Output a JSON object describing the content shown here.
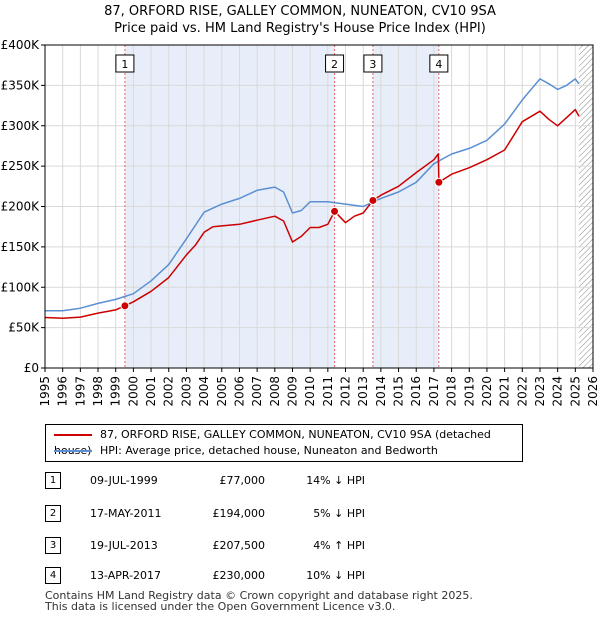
{
  "title": {
    "line1": "87, ORFORD RISE, GALLEY COMMON, NUNEATON, CV10 9SA",
    "line2": "Price paid vs. HM Land Registry's House Price Index (HPI)"
  },
  "chart_data": {
    "type": "line",
    "x_range": [
      1995,
      2026
    ],
    "ylim": [
      0,
      400000
    ],
    "x_ticks": [
      1995,
      1996,
      1997,
      1998,
      1999,
      2000,
      2001,
      2002,
      2003,
      2004,
      2005,
      2006,
      2007,
      2008,
      2009,
      2010,
      2011,
      2012,
      2013,
      2014,
      2015,
      2016,
      2017,
      2018,
      2019,
      2020,
      2021,
      2022,
      2023,
      2024,
      2025,
      2026
    ],
    "y_ticks": [
      {
        "value": 0,
        "label": "£0"
      },
      {
        "value": 50000,
        "label": "£50K"
      },
      {
        "value": 100000,
        "label": "£100K"
      },
      {
        "value": 150000,
        "label": "£150K"
      },
      {
        "value": 200000,
        "label": "£200K"
      },
      {
        "value": 250000,
        "label": "£250K"
      },
      {
        "value": 300000,
        "label": "£300K"
      },
      {
        "value": 350000,
        "label": "£350K"
      },
      {
        "value": 400000,
        "label": "£400K"
      }
    ],
    "series": [
      {
        "name": "87, ORFORD RISE, GALLEY COMMON, NUNEATON, CV10 9SA (detached house)",
        "color": "#cc0000",
        "points": [
          [
            1995.0,
            62500
          ],
          [
            1996.0,
            61500
          ],
          [
            1997.0,
            63000
          ],
          [
            1998.0,
            68000
          ],
          [
            1999.0,
            72000
          ],
          [
            1999.52,
            77000
          ],
          [
            2000.0,
            82000
          ],
          [
            2001.0,
            95000
          ],
          [
            2002.0,
            112000
          ],
          [
            2003.0,
            140000
          ],
          [
            2003.5,
            152000
          ],
          [
            2004.0,
            168000
          ],
          [
            2004.5,
            175000
          ],
          [
            2005.0,
            176000
          ],
          [
            2006.0,
            178000
          ],
          [
            2007.0,
            183000
          ],
          [
            2008.0,
            188000
          ],
          [
            2008.5,
            182000
          ],
          [
            2009.0,
            156000
          ],
          [
            2009.5,
            163000
          ],
          [
            2010.0,
            174000
          ],
          [
            2010.5,
            174000
          ],
          [
            2011.0,
            178000
          ],
          [
            2011.38,
            194000
          ],
          [
            2012.0,
            180000
          ],
          [
            2012.5,
            188000
          ],
          [
            2013.0,
            192000
          ],
          [
            2013.55,
            207500
          ],
          [
            2014.0,
            214000
          ],
          [
            2015.0,
            225000
          ],
          [
            2016.0,
            242000
          ],
          [
            2017.0,
            258000
          ],
          [
            2017.25,
            265000
          ],
          [
            2017.28,
            230000
          ],
          [
            2018.0,
            240000
          ],
          [
            2019.0,
            248000
          ],
          [
            2020.0,
            258000
          ],
          [
            2021.0,
            270000
          ],
          [
            2022.0,
            305000
          ],
          [
            2023.0,
            318000
          ],
          [
            2023.5,
            308000
          ],
          [
            2024.0,
            300000
          ],
          [
            2024.5,
            310000
          ],
          [
            2025.0,
            320000
          ],
          [
            2025.2,
            312000
          ]
        ]
      },
      {
        "name": "HPI: Average price, detached house, Nuneaton and Bedworth",
        "color": "#5b8fd3",
        "points": [
          [
            1995.0,
            71000
          ],
          [
            1996.0,
            71000
          ],
          [
            1997.0,
            74000
          ],
          [
            1998.0,
            80000
          ],
          [
            1999.0,
            85000
          ],
          [
            2000.0,
            92000
          ],
          [
            2001.0,
            108000
          ],
          [
            2002.0,
            128000
          ],
          [
            2003.0,
            160000
          ],
          [
            2004.0,
            193000
          ],
          [
            2005.0,
            203000
          ],
          [
            2006.0,
            210000
          ],
          [
            2007.0,
            220000
          ],
          [
            2008.0,
            224000
          ],
          [
            2008.5,
            218000
          ],
          [
            2009.0,
            192000
          ],
          [
            2009.5,
            195000
          ],
          [
            2010.0,
            206000
          ],
          [
            2011.0,
            206000
          ],
          [
            2012.0,
            203000
          ],
          [
            2013.0,
            200000
          ],
          [
            2014.0,
            210000
          ],
          [
            2015.0,
            218000
          ],
          [
            2016.0,
            230000
          ],
          [
            2017.0,
            253000
          ],
          [
            2018.0,
            265000
          ],
          [
            2019.0,
            272000
          ],
          [
            2020.0,
            282000
          ],
          [
            2021.0,
            302000
          ],
          [
            2022.0,
            332000
          ],
          [
            2023.0,
            358000
          ],
          [
            2023.5,
            352000
          ],
          [
            2024.0,
            345000
          ],
          [
            2024.5,
            350000
          ],
          [
            2025.0,
            358000
          ],
          [
            2025.2,
            352000
          ]
        ]
      }
    ],
    "transactions": [
      {
        "label": "1",
        "x": 1999.52,
        "price": 77000
      },
      {
        "label": "2",
        "x": 2011.38,
        "price": 194000
      },
      {
        "label": "3",
        "x": 2013.55,
        "price": 207500
      },
      {
        "label": "4",
        "x": 2017.28,
        "price": 230000
      }
    ],
    "shaded_ranges": [
      [
        1999.52,
        2011.38
      ],
      [
        2013.55,
        2017.28
      ]
    ],
    "hatched_from": 2025.2
  },
  "legend": {
    "red_label": "87, ORFORD RISE, GALLEY COMMON, NUNEATON, CV10 9SA (detached house)",
    "blue_label": "HPI: Average price, detached house, Nuneaton and Bedworth",
    "red_color": "#cc0000",
    "blue_color": "#5b8fd3"
  },
  "rows": [
    {
      "num": "1",
      "date": "09-JUL-1999",
      "price": "£77,000",
      "pct": "14% ↓ HPI"
    },
    {
      "num": "2",
      "date": "17-MAY-2011",
      "price": "£194,000",
      "pct": "5% ↓ HPI"
    },
    {
      "num": "3",
      "date": "19-JUL-2013",
      "price": "£207,500",
      "pct": "4% ↑ HPI"
    },
    {
      "num": "4",
      "date": "13-APR-2017",
      "price": "£230,000",
      "pct": "10% ↓ HPI"
    }
  ],
  "footer": {
    "line1": "Contains HM Land Registry data © Crown copyright and database right 2025.",
    "line2": "This data is licensed under the Open Government Licence v3.0."
  }
}
